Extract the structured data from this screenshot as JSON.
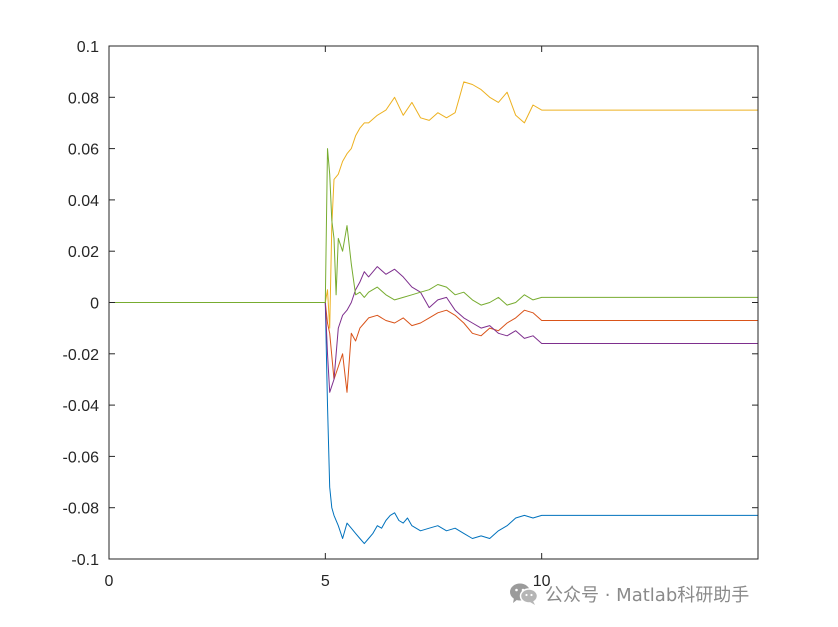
{
  "chart_data": {
    "type": "line",
    "xlim": [
      0,
      15
    ],
    "ylim": [
      -0.1,
      0.1
    ],
    "x_ticks": [
      0,
      5,
      10
    ],
    "x_tick_labels": [
      "0",
      "5",
      "10"
    ],
    "y_ticks": [
      0.1,
      0.08,
      0.06,
      0.04,
      0.02,
      0,
      -0.02,
      -0.04,
      -0.06,
      -0.08,
      -0.1
    ],
    "y_tick_labels": [
      "0.1",
      "0.08",
      "0.06",
      "0.04",
      "0.02",
      "0",
      "-0.02",
      "-0.04",
      "-0.06",
      "-0.08",
      "-0.1"
    ],
    "grid": false,
    "series": [
      {
        "color": "#0072BD",
        "x": [
          0,
          5.0,
          5.05,
          5.1,
          5.15,
          5.2,
          5.3,
          5.4,
          5.5,
          5.6,
          5.7,
          5.8,
          5.9,
          6.0,
          6.1,
          6.2,
          6.3,
          6.4,
          6.5,
          6.6,
          6.7,
          6.8,
          6.9,
          7.0,
          7.2,
          7.4,
          7.6,
          7.8,
          8.0,
          8.2,
          8.4,
          8.6,
          8.8,
          9.0,
          9.2,
          9.4,
          9.6,
          9.8,
          10.0,
          15.0
        ],
        "y": [
          0,
          0,
          -0.04,
          -0.072,
          -0.08,
          -0.083,
          -0.087,
          -0.092,
          -0.086,
          -0.088,
          -0.09,
          -0.092,
          -0.094,
          -0.092,
          -0.09,
          -0.087,
          -0.088,
          -0.085,
          -0.083,
          -0.082,
          -0.085,
          -0.086,
          -0.084,
          -0.087,
          -0.089,
          -0.088,
          -0.087,
          -0.089,
          -0.088,
          -0.09,
          -0.092,
          -0.091,
          -0.092,
          -0.089,
          -0.087,
          -0.084,
          -0.083,
          -0.084,
          -0.083,
          -0.083
        ]
      },
      {
        "color": "#D95319",
        "x": [
          0,
          5.0,
          5.05,
          5.1,
          5.2,
          5.3,
          5.4,
          5.5,
          5.6,
          5.7,
          5.8,
          5.9,
          6.0,
          6.2,
          6.4,
          6.6,
          6.8,
          7.0,
          7.2,
          7.4,
          7.6,
          7.8,
          8.0,
          8.2,
          8.4,
          8.6,
          8.8,
          9.0,
          9.2,
          9.4,
          9.6,
          9.8,
          10.0,
          15.0
        ],
        "y": [
          0,
          0,
          -0.008,
          -0.012,
          -0.03,
          -0.025,
          -0.02,
          -0.035,
          -0.012,
          -0.015,
          -0.01,
          -0.008,
          -0.006,
          -0.005,
          -0.007,
          -0.008,
          -0.006,
          -0.009,
          -0.008,
          -0.006,
          -0.004,
          -0.003,
          -0.005,
          -0.008,
          -0.012,
          -0.013,
          -0.01,
          -0.011,
          -0.008,
          -0.006,
          -0.003,
          -0.004,
          -0.007,
          -0.007
        ]
      },
      {
        "color": "#EDB120",
        "x": [
          0,
          5.0,
          5.05,
          5.1,
          5.15,
          5.2,
          5.3,
          5.4,
          5.5,
          5.6,
          5.7,
          5.8,
          5.9,
          6.0,
          6.2,
          6.4,
          6.6,
          6.8,
          7.0,
          7.2,
          7.4,
          7.6,
          7.8,
          8.0,
          8.1,
          8.2,
          8.4,
          8.6,
          8.8,
          9.0,
          9.2,
          9.4,
          9.6,
          9.8,
          10.0,
          15.0
        ],
        "y": [
          0,
          0,
          0.005,
          -0.01,
          0.03,
          0.048,
          0.05,
          0.055,
          0.058,
          0.06,
          0.065,
          0.068,
          0.07,
          0.07,
          0.073,
          0.075,
          0.08,
          0.073,
          0.078,
          0.072,
          0.071,
          0.074,
          0.072,
          0.074,
          0.08,
          0.086,
          0.085,
          0.083,
          0.08,
          0.078,
          0.082,
          0.073,
          0.07,
          0.077,
          0.075,
          0.075
        ]
      },
      {
        "color": "#7E2F8E",
        "x": [
          0,
          5.0,
          5.05,
          5.1,
          5.2,
          5.3,
          5.4,
          5.5,
          5.6,
          5.7,
          5.8,
          5.9,
          6.0,
          6.2,
          6.4,
          6.6,
          6.8,
          7.0,
          7.2,
          7.4,
          7.6,
          7.8,
          8.0,
          8.2,
          8.4,
          8.6,
          8.8,
          9.0,
          9.2,
          9.4,
          9.6,
          9.8,
          10.0,
          15.0
        ],
        "y": [
          0,
          0,
          -0.02,
          -0.035,
          -0.03,
          -0.01,
          -0.005,
          -0.003,
          0.0,
          0.005,
          0.008,
          0.012,
          0.01,
          0.014,
          0.011,
          0.013,
          0.01,
          0.006,
          0.004,
          -0.002,
          0.001,
          0.002,
          -0.003,
          -0.006,
          -0.008,
          -0.01,
          -0.009,
          -0.012,
          -0.013,
          -0.011,
          -0.014,
          -0.013,
          -0.016,
          -0.016
        ]
      },
      {
        "color": "#77AC30",
        "x": [
          0,
          5.0,
          5.05,
          5.1,
          5.15,
          5.2,
          5.25,
          5.3,
          5.4,
          5.5,
          5.6,
          5.7,
          5.8,
          5.9,
          6.0,
          6.2,
          6.4,
          6.6,
          6.8,
          7.0,
          7.2,
          7.4,
          7.6,
          7.8,
          8.0,
          8.2,
          8.4,
          8.6,
          8.8,
          9.0,
          9.2,
          9.4,
          9.6,
          9.8,
          10.0,
          15.0
        ],
        "y": [
          0,
          0,
          0.06,
          0.05,
          0.032,
          0.025,
          0.003,
          0.025,
          0.02,
          0.03,
          0.015,
          0.003,
          0.004,
          0.002,
          0.004,
          0.006,
          0.003,
          0.001,
          0.002,
          0.003,
          0.004,
          0.005,
          0.007,
          0.006,
          0.003,
          0.004,
          0.001,
          -0.001,
          0.0,
          0.002,
          -0.001,
          0.0,
          0.003,
          0.001,
          0.002,
          0.002
        ]
      }
    ]
  },
  "watermark": {
    "text": "公众号 · Matlab科研助手",
    "icon": "wechat-icon"
  }
}
